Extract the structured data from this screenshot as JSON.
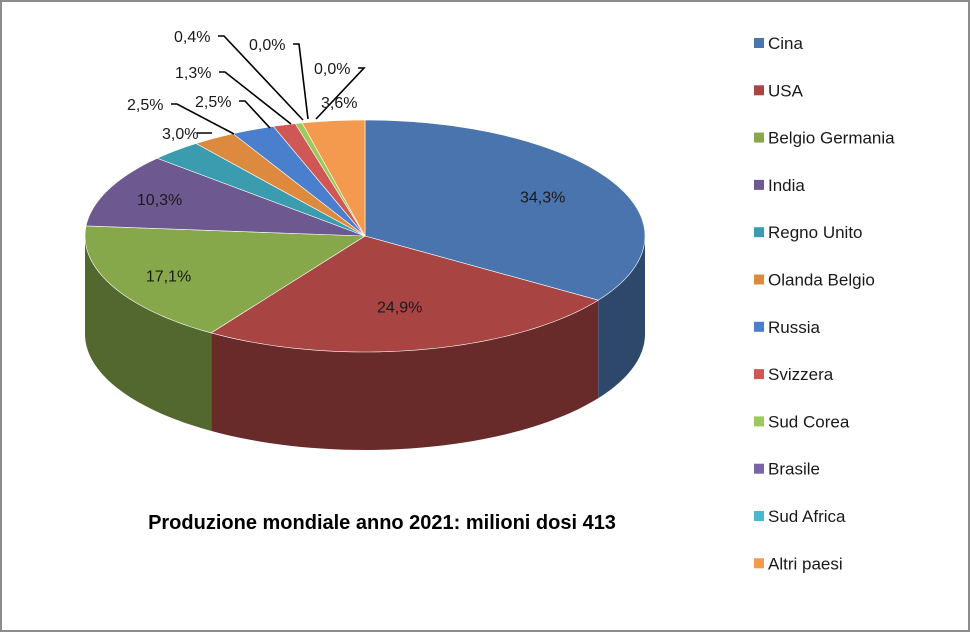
{
  "chart_data": {
    "type": "pie",
    "title": "Produzione mondiale anno 2021: milioni dosi 413",
    "legend_position": "right",
    "slices": [
      {
        "label": "Cina",
        "value": 34.3,
        "display": "34,3%",
        "color": "#4a74ad"
      },
      {
        "label": "USA",
        "value": 24.9,
        "display": "24,9%",
        "color": "#a84543"
      },
      {
        "label": "Belgio Germania",
        "value": 17.1,
        "display": "17,1%",
        "color": "#86a84b"
      },
      {
        "label": "India",
        "value": 10.3,
        "display": "10,3%",
        "color": "#6e5890"
      },
      {
        "label": "Regno Unito",
        "value": 3.0,
        "display": "3,0%",
        "color": "#3a9cae"
      },
      {
        "label": "Olanda Belgio",
        "value": 2.5,
        "display": "2,5%",
        "color": "#dd8a3e"
      },
      {
        "label": "Russia",
        "value": 2.5,
        "display": "2,5%",
        "color": "#4a7fcd"
      },
      {
        "label": "Svizzera",
        "value": 1.3,
        "display": "1,3%",
        "color": "#cf5756"
      },
      {
        "label": "Sud Corea",
        "value": 0.4,
        "display": "0,4%",
        "color": "#9cc95a"
      },
      {
        "label": "Brasile",
        "value": 0.0,
        "display": "0,0%",
        "color": "#7b63a8"
      },
      {
        "label": "Sud Africa",
        "value": 0.0,
        "display": "0,0%",
        "color": "#4bb7cd"
      },
      {
        "label": "Altri paesi",
        "value": 3.6,
        "display": "3,6%",
        "color": "#f39a4e"
      }
    ]
  }
}
